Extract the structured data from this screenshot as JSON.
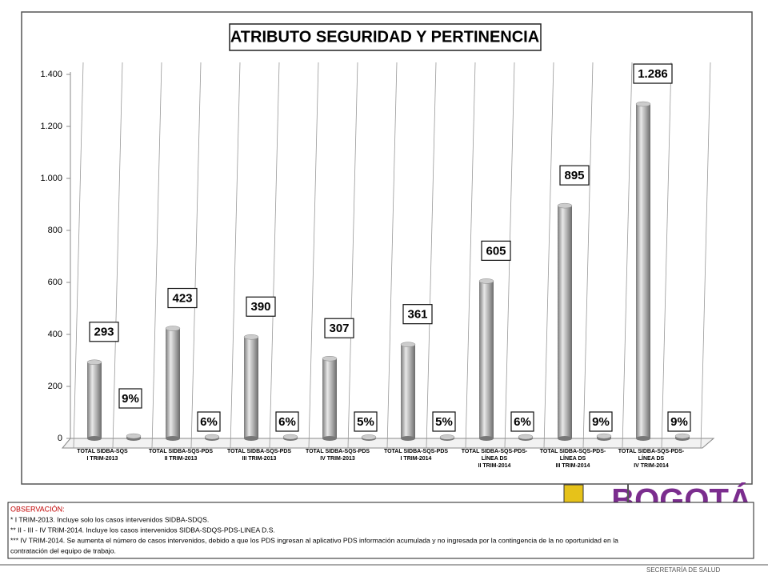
{
  "chart_data": {
    "type": "bar",
    "title": "ATRIBUTO SEGURIDAD Y PERTINENCIA",
    "categories": [
      [
        "TOTAL SIDBA-SQS",
        "I TRIM-2013"
      ],
      [
        "TOTAL SIDBA-SQS-PDS",
        "II TRIM-2013"
      ],
      [
        "TOTAL SIDBA-SQS-PDS",
        "III TRIM-2013"
      ],
      [
        "TOTAL SIDBA-SQS-PDS",
        "IV TRIM-2013"
      ],
      [
        "TOTAL SIDBA-SQS-PDS",
        "I TRIM-2014"
      ],
      [
        "TOTAL SIDBA-SQS-PDS-",
        "LÍNEA DS",
        "II TRIM-2014"
      ],
      [
        "TOTAL SIDBA-SQS-PDS-",
        "LÍNEA DS",
        "III TRIM-2014"
      ],
      [
        "TOTAL SIDBA-SQS-PDS-",
        "LÍNEA DS",
        "IV TRIM-2014"
      ]
    ],
    "series": [
      {
        "color": "#a6a6a6",
        "values": [
          293,
          423,
          390,
          307,
          361,
          605,
          895,
          1286
        ],
        "value_labels": [
          "293",
          "423",
          "390",
          "307",
          "361",
          "605",
          "895",
          "1.286"
        ]
      },
      {
        "color": "#a6a6a6",
        "values": [
          9,
          6,
          6,
          5,
          5,
          6,
          9,
          9
        ],
        "value_labels": [
          "9%",
          "6%",
          "6%",
          "5%",
          "5%",
          "6%",
          "9%",
          "9%"
        ]
      }
    ],
    "ylim": [
      0,
      1400
    ],
    "yticks": [
      0,
      200,
      400,
      600,
      800,
      {
        "value": 1000,
        "label": "1.000"
      },
      {
        "value": 1200,
        "label": "1.200"
      },
      {
        "value": 1400,
        "label": "1.400"
      }
    ]
  },
  "logo": "BOGOTÁ",
  "notes": {
    "title": "OBSERVACIÓN:",
    "lines": [
      "* I TRIM-2013. Incluye solo los casos intervenidos SIDBA-SDQS.",
      "** II - III - IV TRIM-2014. Incluye los casos intervenidos SIDBA-SDQS-PDS-LINEA D.S.",
      "*** IV TRIM-2014. Se aumenta el número de casos intervenidos, debido a que los PDS ingresan al aplicativo PDS información acumulada y no ingresada por la contingencia de la no oportunidad en la",
      "contratación del equipo de trabajo."
    ]
  },
  "footer": "SECRETARÍA DE SALUD"
}
